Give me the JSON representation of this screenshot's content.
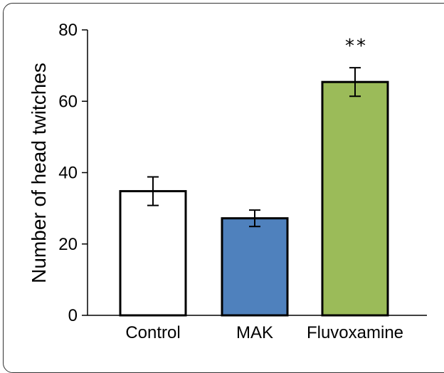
{
  "chart_data": {
    "type": "bar",
    "categories": [
      "Control",
      "MAK",
      "Fluvoxamine"
    ],
    "values": [
      34.8,
      27.2,
      65.4
    ],
    "errors": [
      4.0,
      2.3,
      4.0
    ],
    "colors": [
      "#ffffff",
      "#4f81bd",
      "#9bbb59"
    ],
    "annotations": [
      "",
      "",
      "**"
    ],
    "ylabel": "Number of head twitches",
    "xlabel": "",
    "title": "",
    "ylim": [
      0,
      80
    ],
    "yticks": [
      0,
      20,
      40,
      60,
      80
    ],
    "grid": false
  }
}
